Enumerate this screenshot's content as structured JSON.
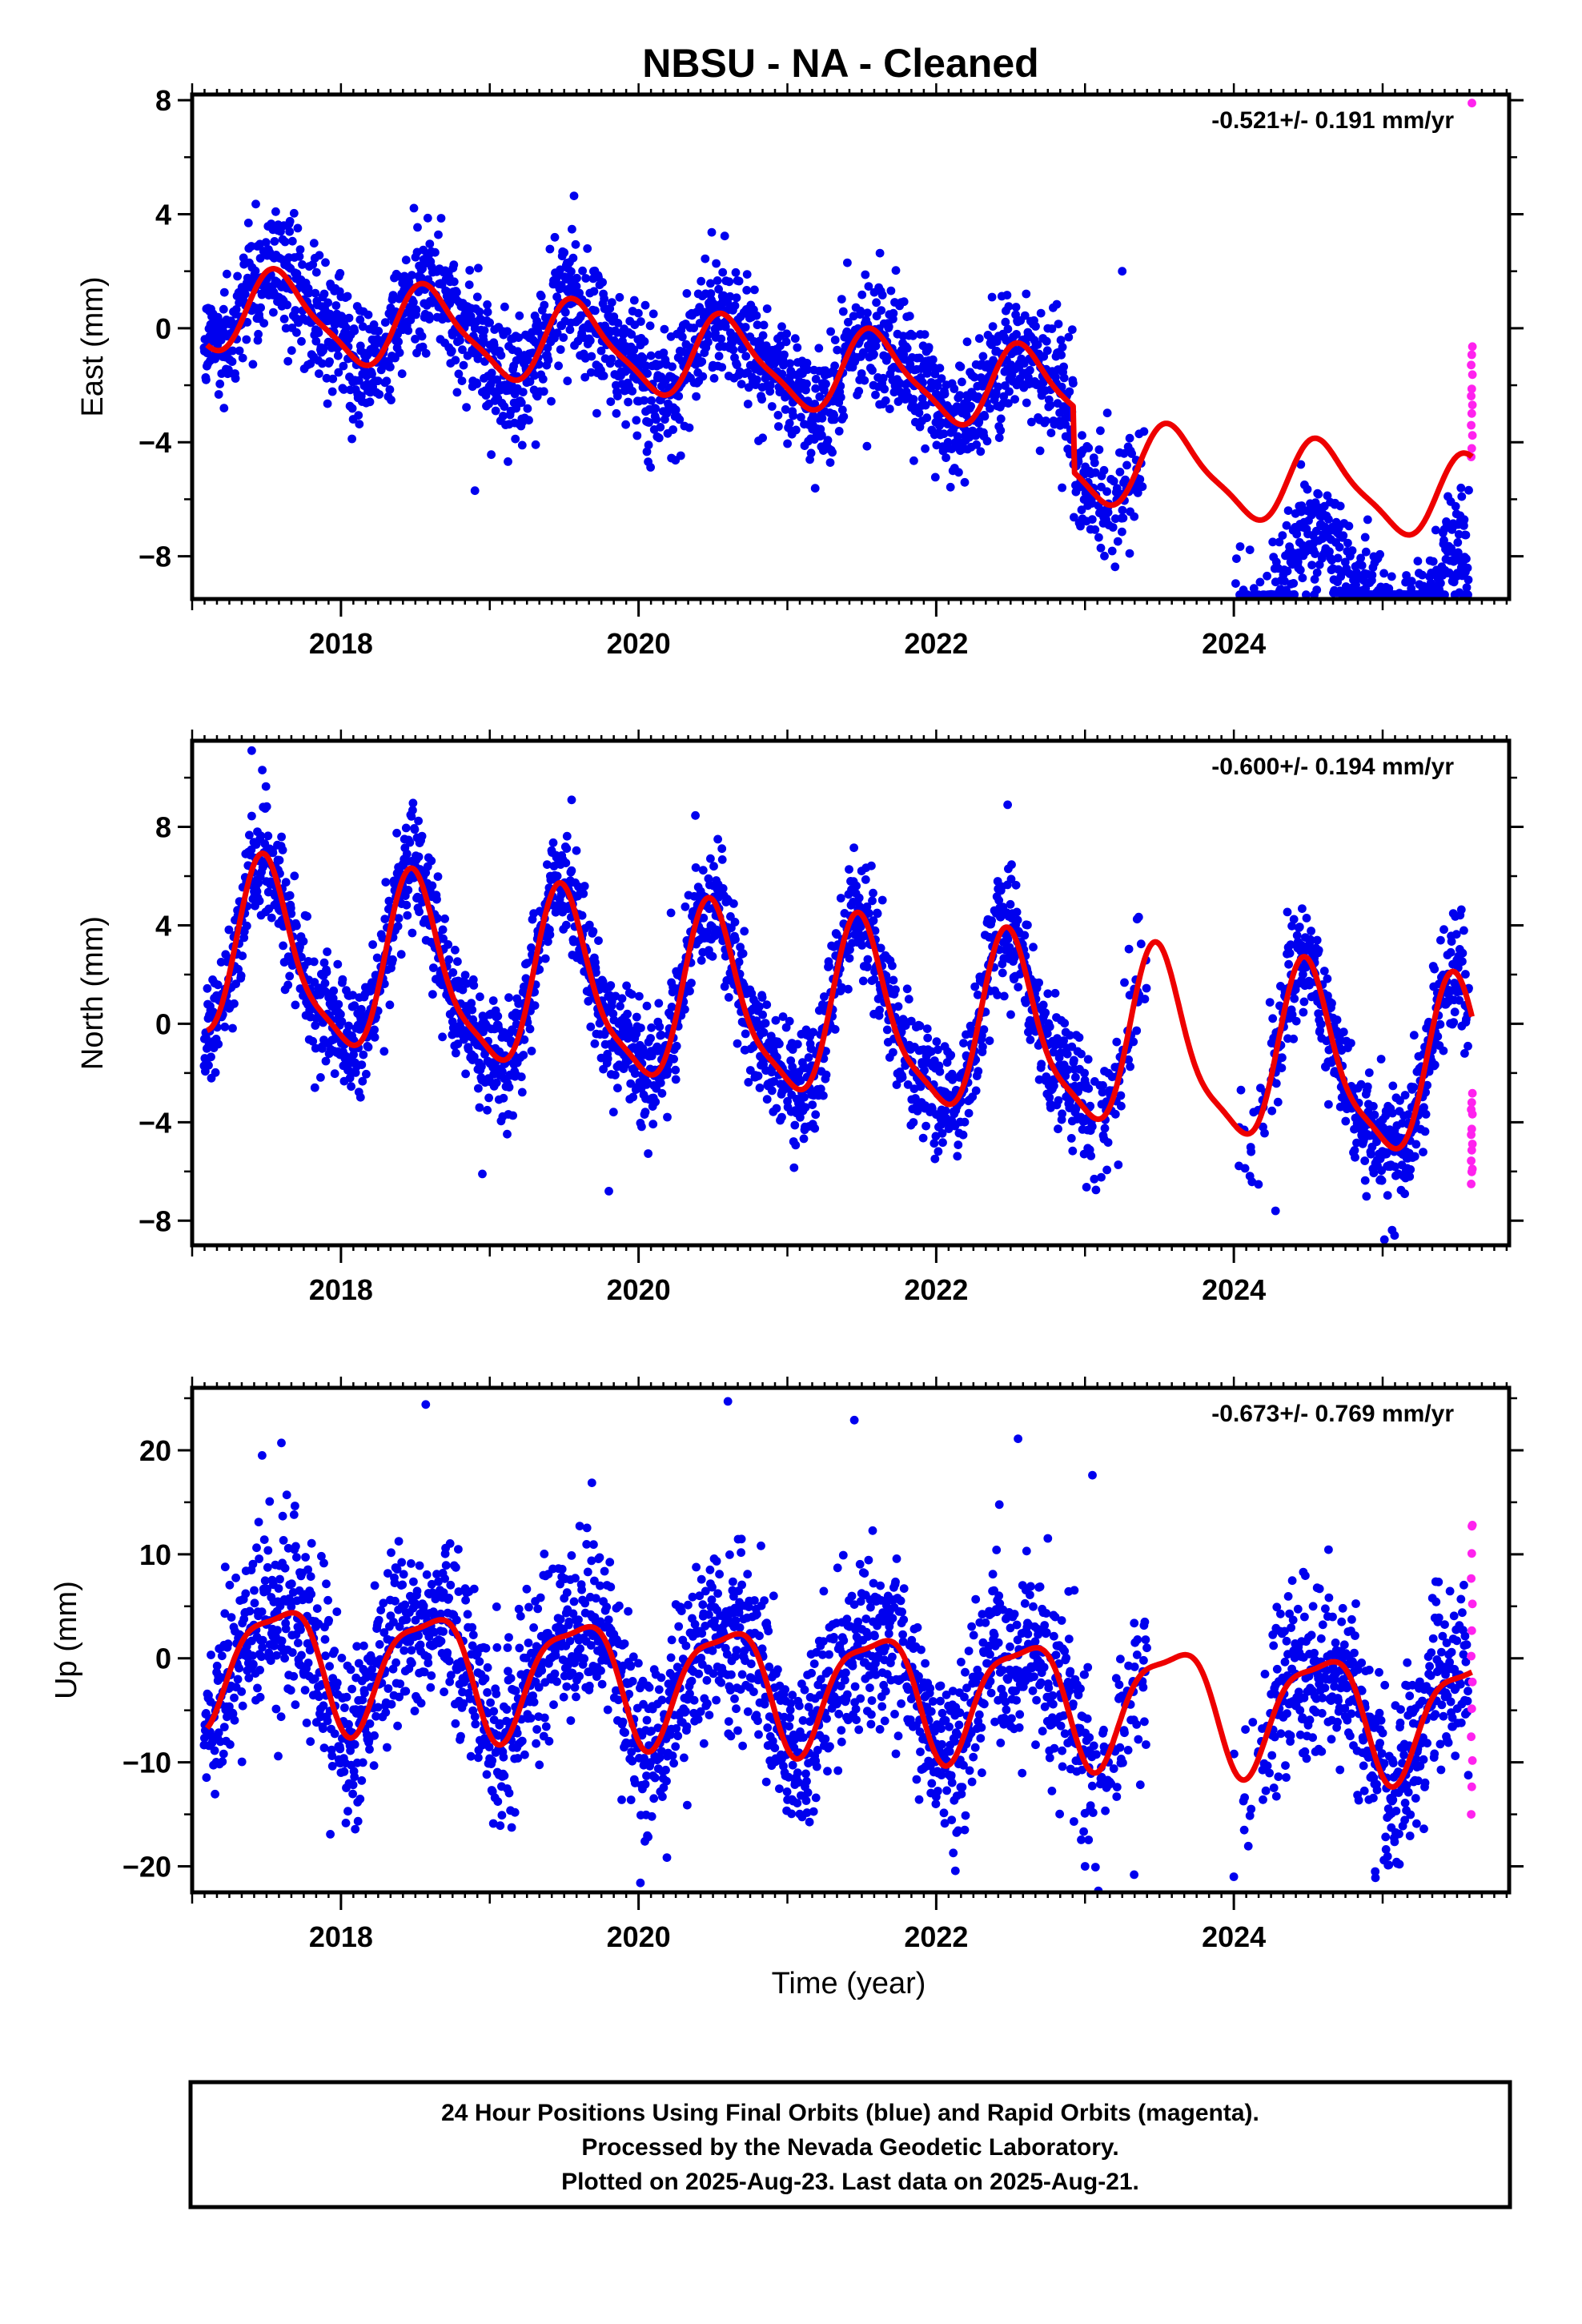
{
  "colors": {
    "final_orbits": "#0000ee",
    "rapid_orbits": "#ff22ee",
    "model": "#ee0000",
    "frame": "#000000"
  },
  "chart_data": {
    "type": "scatter",
    "title": "NBSU  - NA - Cleaned",
    "xlabel": "Time (year)",
    "x_ticks": [
      2018,
      2020,
      2022,
      2024
    ],
    "xlim": [
      2017.0,
      2025.85
    ],
    "data_gap": [
      2023.42,
      2024.0
    ],
    "rapid_start": 2025.58,
    "panels": [
      {
        "name": "east",
        "ylabel": "East (mm)",
        "ylim": [
          -9.5,
          8.2
        ],
        "yticks": [
          -8,
          -4,
          0,
          4,
          8
        ],
        "rate_text": "-0.521+/- 0.191 mm/yr",
        "model": {
          "offset": 0.76,
          "rate": -0.521,
          "annual_amp": 1.4,
          "annual_peak": 0.6,
          "semiannual_amp": 0.35,
          "semiannual_peak": 0.5,
          "breaks": [
            [
              2022.92,
              -2.3
            ]
          ],
          "scatter_sd": 1.1
        },
        "outliers": [
          [
            2018.9,
            -5.7
          ],
          [
            2023.25,
            2.0
          ],
          [
            2023.3,
            -7.9
          ],
          [
            2024.97,
            -9.2
          ]
        ],
        "rapid_range": [
          -4.6,
          -0.5
        ],
        "rapid_extra": [
          7.9
        ]
      },
      {
        "name": "north",
        "ylabel": "North (mm)",
        "ylim": [
          -9.0,
          11.5
        ],
        "yticks": [
          -8,
          -4,
          0,
          4,
          8
        ],
        "rate_text": "-0.600+/- 0.194 mm/yr",
        "model": {
          "offset": 2.9,
          "rate": -0.6,
          "annual_amp": 3.5,
          "annual_peak": 0.5,
          "semiannual_amp": 0.9,
          "semiannual_peak": 0.45,
          "breaks": [],
          "scatter_sd": 1.2
        },
        "outliers": [
          [
            2017.4,
            11.1
          ],
          [
            2018.95,
            -6.1
          ],
          [
            2019.55,
            9.1
          ],
          [
            2019.8,
            -6.8
          ],
          [
            2022.48,
            8.9
          ],
          [
            2024.28,
            -7.6
          ],
          [
            2025.08,
            -8.6
          ]
        ],
        "rapid_range": [
          -6.5,
          -2.8
        ],
        "rapid_extra": []
      },
      {
        "name": "up",
        "ylabel": "Up (mm)",
        "ylim": [
          -22.5,
          26.0
        ],
        "yticks": [
          -20,
          -10,
          0,
          10,
          20
        ],
        "rate_text": "-0.673+/- 0.769 mm/yr",
        "model": {
          "offset": 0.2,
          "rate": -0.673,
          "annual_amp": 5.6,
          "annual_peak": 0.58,
          "semiannual_amp": 1.6,
          "semiannual_peak": 0.3,
          "breaks": [],
          "scatter_sd": 4.2
        },
        "outliers": [
          [
            2017.47,
            19.5
          ],
          [
            2017.6,
            20.7
          ],
          [
            2018.57,
            24.4
          ],
          [
            2020.6,
            24.7
          ],
          [
            2021.45,
            22.9
          ],
          [
            2022.55,
            21.1
          ],
          [
            2023.05,
            17.6
          ],
          [
            2023.0,
            -20.0
          ],
          [
            2023.33,
            -20.8
          ],
          [
            2024.0,
            -21.0
          ],
          [
            2024.95,
            -20.5
          ]
        ],
        "rapid_range": [
          -15.0,
          12.7
        ],
        "rapid_extra": [
          12.7
        ]
      }
    ]
  },
  "footer": {
    "line1": "24 Hour Positions Using Final Orbits (blue) and Rapid Orbits (magenta).",
    "line2": "Processed by the Nevada Geodetic Laboratory.",
    "line3": "Plotted on 2025-Aug-23. Last data on 2025-Aug-21."
  }
}
